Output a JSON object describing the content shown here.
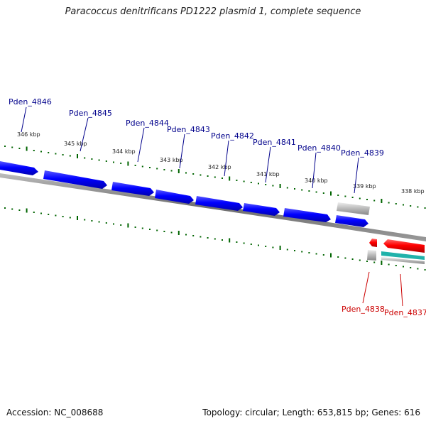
{
  "title": "Paracoccus denitrificans PD1222 plasmid 1, complete sequence",
  "footer": {
    "accession": "Accession: NC_008688",
    "summary": "Topology: circular; Length: 653,815 bp; Genes: 616"
  },
  "ticks": [
    "346 kbp",
    "345 kbp",
    "344 kbp",
    "343 kbp",
    "342 kbp",
    "341 kbp",
    "340 kbp",
    "339 kbp",
    "338 kbp"
  ],
  "genes": {
    "forward": [
      "Pden_4846",
      "Pden_4845",
      "Pden_4844",
      "Pden_4843",
      "Pden_4842",
      "Pden_4841",
      "Pden_4840",
      "Pden_4839"
    ],
    "reverse": [
      "Pden_4838",
      "Pden_4837"
    ]
  },
  "colors": {
    "forward_label": "#00008b",
    "reverse_label": "#cc0000",
    "forward_gene": "#0000ff",
    "reverse_gene": "#ff0000",
    "tick": "#006400",
    "backbone": "#808080",
    "teal_feature": "#20b2aa",
    "gray_feature": "#b0b0b0"
  }
}
